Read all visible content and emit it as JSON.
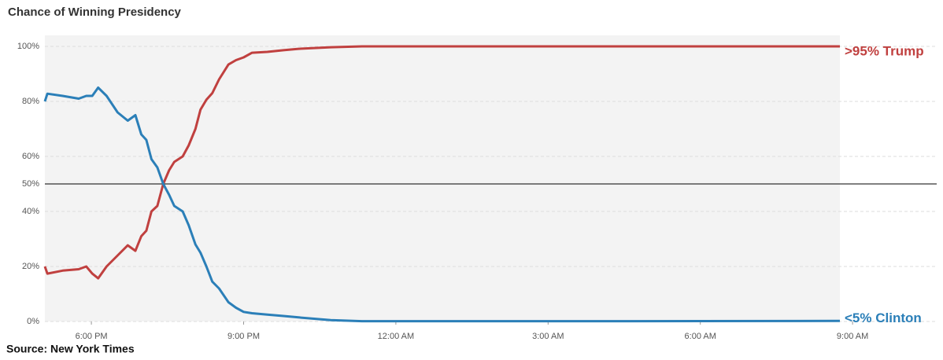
{
  "chart_data": {
    "type": "line",
    "title": "Chance of Winning Presidency",
    "source": "Source: New York Times",
    "x": [
      "5:05 PM",
      "5:08 PM",
      "5:26 PM",
      "5:45 PM",
      "5:54 PM",
      "6:01 PM",
      "6:08 PM",
      "6:18 PM",
      "6:31 PM",
      "6:43 PM",
      "6:52 PM",
      "6:59 PM",
      "7:05 PM",
      "7:11 PM",
      "7:18 PM",
      "7:25 PM",
      "7:32 PM",
      "7:38 PM",
      "7:48 PM",
      "7:55 PM",
      "8:03 PM",
      "8:09 PM",
      "8:16 PM",
      "8:23 PM",
      "8:31 PM",
      "8:42 PM",
      "8:51 PM",
      "9:00 PM",
      "9:10 PM",
      "9:28 PM",
      "9:47 PM",
      "10:05 PM",
      "10:43 PM",
      "11:20 PM",
      "1:30 AM",
      "4:36 AM",
      "8:45 AM"
    ],
    "series": [
      {
        "name": ">95% Trump",
        "color": "#c0403f",
        "values": [
          20,
          17.4,
          18.5,
          19,
          20,
          17.4,
          15.7,
          20,
          24,
          27.7,
          25.7,
          31,
          33,
          40,
          42,
          50,
          55,
          58,
          60,
          64,
          70,
          77,
          80.6,
          83,
          88,
          93.4,
          95,
          96,
          97.7,
          98,
          98.6,
          99.1,
          99.7,
          100,
          100,
          100,
          100
        ]
      },
      {
        "name": "<5% Clinton",
        "color": "#2b7fb8",
        "values": [
          80,
          82.8,
          82,
          81,
          82,
          82,
          85,
          82,
          76,
          73,
          75,
          68,
          66,
          59,
          56,
          50,
          46,
          42,
          40,
          35,
          28,
          25,
          20,
          14.5,
          12,
          7,
          5,
          3.5,
          3,
          2.5,
          2,
          1.5,
          0.5,
          0.1,
          0.1,
          0.1,
          0.2
        ]
      }
    ],
    "xlim": [
      "5:05 PM",
      "8:45 AM"
    ],
    "xticks": [
      "6:00 PM",
      "9:00 PM",
      "12:00 AM",
      "3:00 AM",
      "6:00 AM",
      "9:00 AM"
    ],
    "ylim": [
      0,
      100
    ],
    "yticks": [
      {
        "value": 0,
        "label": "0%"
      },
      {
        "value": 20,
        "label": "20%"
      },
      {
        "value": 40,
        "label": "40%"
      },
      {
        "value": 50,
        "label": "50%"
      },
      {
        "value": 60,
        "label": "60%"
      },
      {
        "value": 80,
        "label": "80%"
      },
      {
        "value": 100,
        "label": "100%"
      }
    ],
    "grid": true
  }
}
